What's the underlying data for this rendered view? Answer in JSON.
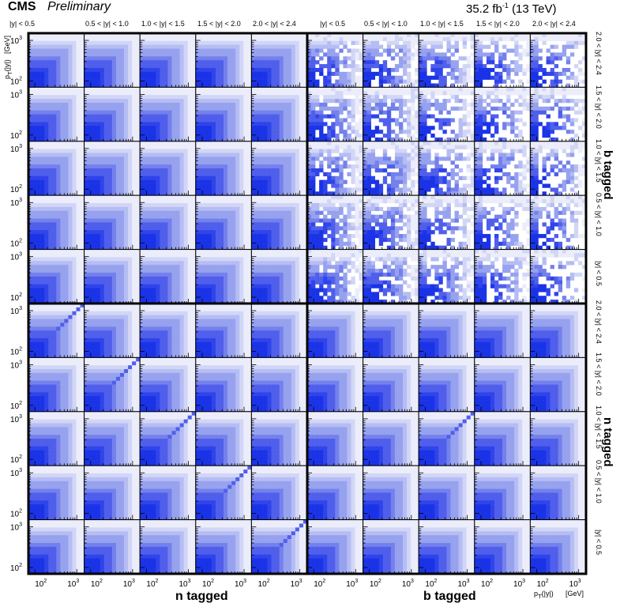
{
  "header": {
    "experiment": "CMS",
    "status": "Preliminary",
    "lumi_value": "35.2 fb",
    "lumi_exp": "-1",
    "energy": "(13 TeV)"
  },
  "chart_data": {
    "type": "heatmap",
    "description_axis_x": "pT(|y|) [GeV]",
    "x_axis": {
      "label": "p",
      "sub": "T",
      "suffix": "(|y|)",
      "unit": "[GeV]",
      "scale": "log",
      "range": [
        70,
        1500
      ],
      "tick_labels": [
        "10",
        "10"
      ],
      "tick_exps": [
        "2",
        "3"
      ]
    },
    "y_axis": {
      "label": "p",
      "sub": "T",
      "suffix": "(|y|)",
      "unit": "[GeV]",
      "scale": "log",
      "range": [
        70,
        1500
      ],
      "tick_labels": [
        "10",
        "10"
      ],
      "tick_exps": [
        "2",
        "3"
      ]
    },
    "rapidity_bins": [
      "|y| < 0.5",
      "0.5 < |y| < 1.0",
      "1.0 < |y| < 1.5",
      "1.5 < |y| < 2.0",
      "2.0 < |y| < 2.4"
    ],
    "column_groups": [
      "n tagged",
      "b tagged"
    ],
    "row_groups": [
      "b tagged",
      "n tagged"
    ],
    "grid": {
      "columns": 10,
      "rows": 10
    },
    "colors": [
      "#ecedfb",
      "#d2d6f6",
      "#b5bdf3",
      "#97a2ef",
      "#7481ec",
      "#505feb",
      "#2f44ea",
      "#1a33e6"
    ],
    "sparse_panels_note": "b tagged x b tagged block shows sparse, noisy bins",
    "diagonal_visible": true
  }
}
